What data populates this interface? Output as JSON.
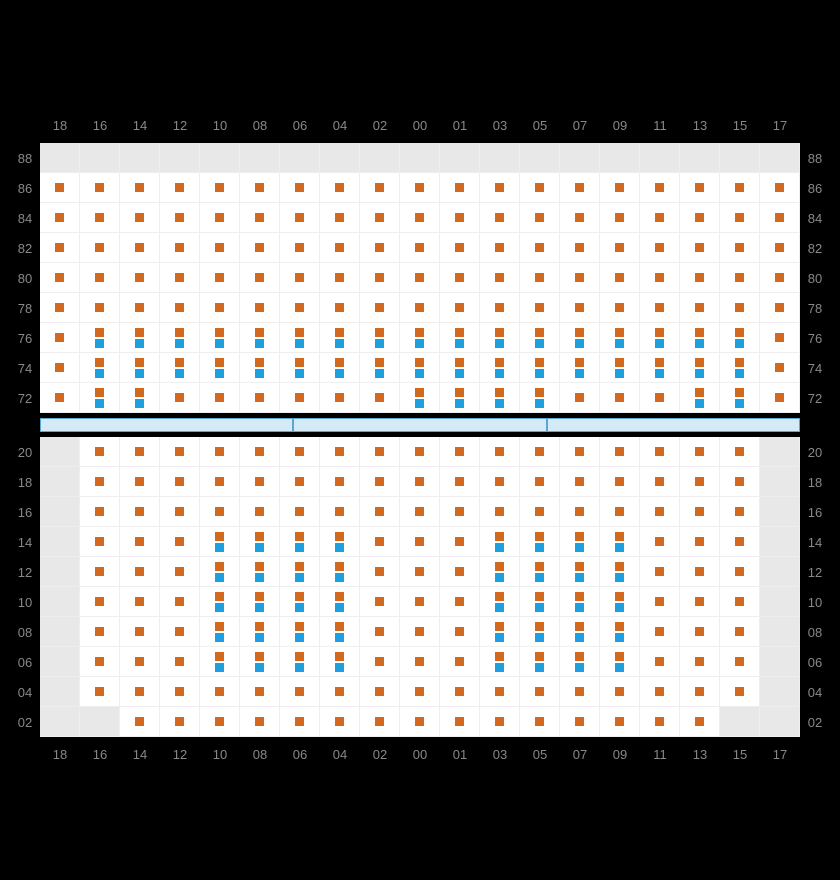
{
  "chart": {
    "type": "seating-map",
    "columns": [
      "18",
      "16",
      "14",
      "12",
      "10",
      "08",
      "06",
      "04",
      "02",
      "00",
      "01",
      "03",
      "05",
      "07",
      "09",
      "11",
      "13",
      "15",
      "17"
    ],
    "colors": {
      "orange": "#d2691e",
      "blue": "#1e9fe0",
      "bg": "#ffffff",
      "unavailable": "#e8e8e8",
      "grid": "#eeeeee",
      "label": "#888888",
      "divider_fill": "#d4ebf7",
      "divider_border": "#5aa8d0",
      "page_bg": "#000000"
    },
    "top_section": {
      "rows": [
        {
          "label": "88",
          "cells": [
            "u",
            "u",
            "u",
            "u",
            "u",
            "u",
            "u",
            "u",
            "u",
            "u",
            "u",
            "u",
            "u",
            "u",
            "u",
            "u",
            "u",
            "u",
            "u"
          ]
        },
        {
          "label": "86",
          "cells": [
            "o",
            "o",
            "o",
            "o",
            "o",
            "o",
            "o",
            "o",
            "o",
            "o",
            "o",
            "o",
            "o",
            "o",
            "o",
            "o",
            "o",
            "o",
            "o"
          ]
        },
        {
          "label": "84",
          "cells": [
            "o",
            "o",
            "o",
            "o",
            "o",
            "o",
            "o",
            "o",
            "o",
            "o",
            "o",
            "o",
            "o",
            "o",
            "o",
            "o",
            "o",
            "o",
            "o"
          ]
        },
        {
          "label": "82",
          "cells": [
            "o",
            "o",
            "o",
            "o",
            "o",
            "o",
            "o",
            "o",
            "o",
            "o",
            "o",
            "o",
            "o",
            "o",
            "o",
            "o",
            "o",
            "o",
            "o"
          ]
        },
        {
          "label": "80",
          "cells": [
            "o",
            "o",
            "o",
            "o",
            "o",
            "o",
            "o",
            "o",
            "o",
            "o",
            "o",
            "o",
            "o",
            "o",
            "o",
            "o",
            "o",
            "o",
            "o"
          ]
        },
        {
          "label": "78",
          "cells": [
            "o",
            "o",
            "o",
            "o",
            "o",
            "o",
            "o",
            "o",
            "o",
            "o",
            "o",
            "o",
            "o",
            "o",
            "o",
            "o",
            "o",
            "o",
            "o"
          ]
        },
        {
          "label": "76",
          "cells": [
            "o",
            "ob",
            "ob",
            "ob",
            "ob",
            "ob",
            "ob",
            "ob",
            "ob",
            "ob",
            "ob",
            "ob",
            "ob",
            "ob",
            "ob",
            "ob",
            "ob",
            "ob",
            "o"
          ]
        },
        {
          "label": "74",
          "cells": [
            "o",
            "ob",
            "ob",
            "ob",
            "ob",
            "ob",
            "ob",
            "ob",
            "ob",
            "ob",
            "ob",
            "ob",
            "ob",
            "ob",
            "ob",
            "ob",
            "ob",
            "ob",
            "o"
          ]
        },
        {
          "label": "72",
          "cells": [
            "o",
            "ob",
            "ob",
            "o",
            "o",
            "o",
            "o",
            "o",
            "o",
            "ob",
            "ob",
            "ob",
            "ob",
            "o",
            "o",
            "o",
            "ob",
            "ob",
            "o"
          ]
        }
      ]
    },
    "divider": {
      "segments": 3
    },
    "bottom_section": {
      "rows": [
        {
          "label": "20",
          "cells": [
            "u",
            "o",
            "o",
            "o",
            "o",
            "o",
            "o",
            "o",
            "o",
            "o",
            "o",
            "o",
            "o",
            "o",
            "o",
            "o",
            "o",
            "o",
            "u"
          ]
        },
        {
          "label": "18",
          "cells": [
            "u",
            "o",
            "o",
            "o",
            "o",
            "o",
            "o",
            "o",
            "o",
            "o",
            "o",
            "o",
            "o",
            "o",
            "o",
            "o",
            "o",
            "o",
            "u"
          ]
        },
        {
          "label": "16",
          "cells": [
            "u",
            "o",
            "o",
            "o",
            "o",
            "o",
            "o",
            "o",
            "o",
            "o",
            "o",
            "o",
            "o",
            "o",
            "o",
            "o",
            "o",
            "o",
            "u"
          ]
        },
        {
          "label": "14",
          "cells": [
            "u",
            "o",
            "o",
            "o",
            "ob",
            "ob",
            "ob",
            "ob",
            "o",
            "o",
            "o",
            "ob",
            "ob",
            "ob",
            "ob",
            "o",
            "o",
            "o",
            "u"
          ]
        },
        {
          "label": "12",
          "cells": [
            "u",
            "o",
            "o",
            "o",
            "ob",
            "ob",
            "ob",
            "ob",
            "o",
            "o",
            "o",
            "ob",
            "ob",
            "ob",
            "ob",
            "o",
            "o",
            "o",
            "u"
          ]
        },
        {
          "label": "10",
          "cells": [
            "u",
            "o",
            "o",
            "o",
            "ob",
            "ob",
            "ob",
            "ob",
            "o",
            "o",
            "o",
            "ob",
            "ob",
            "ob",
            "ob",
            "o",
            "o",
            "o",
            "u"
          ]
        },
        {
          "label": "08",
          "cells": [
            "u",
            "o",
            "o",
            "o",
            "ob",
            "ob",
            "ob",
            "ob",
            "o",
            "o",
            "o",
            "ob",
            "ob",
            "ob",
            "ob",
            "o",
            "o",
            "o",
            "u"
          ]
        },
        {
          "label": "06",
          "cells": [
            "u",
            "o",
            "o",
            "o",
            "ob",
            "ob",
            "ob",
            "ob",
            "o",
            "o",
            "o",
            "ob",
            "ob",
            "ob",
            "ob",
            "o",
            "o",
            "o",
            "u"
          ]
        },
        {
          "label": "04",
          "cells": [
            "u",
            "o",
            "o",
            "o",
            "o",
            "o",
            "o",
            "o",
            "o",
            "o",
            "o",
            "o",
            "o",
            "o",
            "o",
            "o",
            "o",
            "o",
            "u"
          ]
        },
        {
          "label": "02",
          "cells": [
            "u",
            "u",
            "o",
            "o",
            "o",
            "o",
            "o",
            "o",
            "o",
            "o",
            "o",
            "o",
            "o",
            "o",
            "o",
            "o",
            "o",
            "u",
            "u"
          ]
        }
      ]
    }
  }
}
